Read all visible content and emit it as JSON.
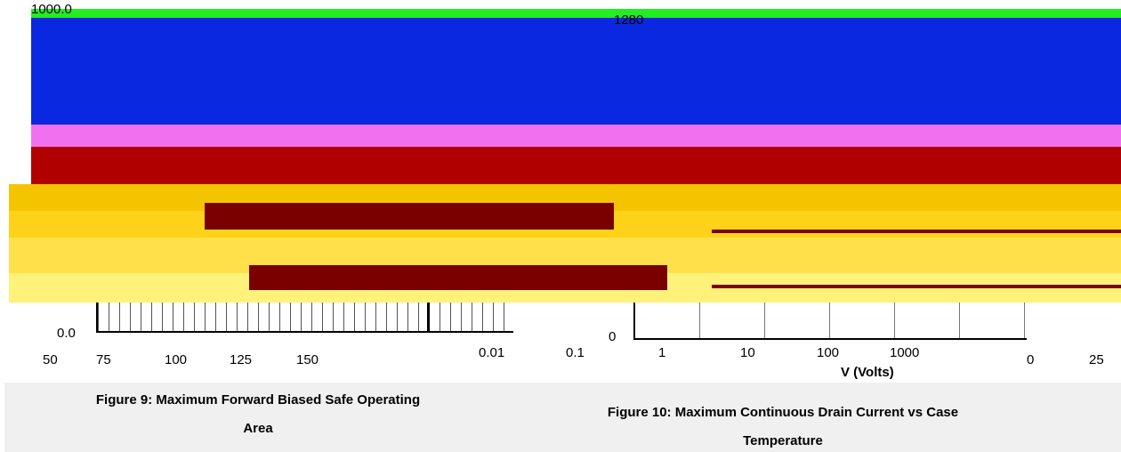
{
  "figure_9": {
    "top_label": "1000.0",
    "bottom_label": "0.0",
    "x_labels": [
      "50",
      "75",
      "100",
      "125",
      "150"
    ],
    "caption": "Figure 9: Maximum Forward Biased Safe Operating Area"
  },
  "figure_10": {
    "top_label": "1280",
    "bottom_label": "0",
    "x_labels": [
      "0.01",
      "0.1",
      "1",
      "10",
      "100",
      "1000"
    ],
    "x_axis_title": "V (Volts)",
    "right_labels": [
      "0",
      "25"
    ],
    "caption": "Figure 10: Maximum Continuous Drain Current vs Case Temperature"
  }
}
